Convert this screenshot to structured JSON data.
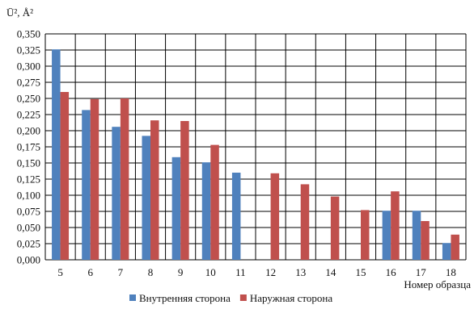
{
  "chart_data": {
    "type": "bar",
    "ylabel": "Ū², Å²",
    "xlabel": "Номер образца",
    "categories": [
      "5",
      "6",
      "7",
      "8",
      "9",
      "10",
      "11",
      "12",
      "13",
      "14",
      "15",
      "16",
      "17",
      "18"
    ],
    "ylim": [
      0,
      0.35
    ],
    "ytick_step": 0.025,
    "ytick_labels": [
      "0,000",
      "0,025",
      "0,050",
      "0,075",
      "0,100",
      "0,125",
      "0,150",
      "0,175",
      "0,200",
      "0,225",
      "0,250",
      "0,275",
      "0,300",
      "0,325",
      "0,350"
    ],
    "grid": true,
    "legend_position": "bottom",
    "series": [
      {
        "name": "Внутренняя сторона",
        "color": "#4f81bd",
        "values": [
          0.326,
          0.232,
          0.206,
          0.192,
          0.159,
          0.151,
          0.135,
          null,
          null,
          null,
          null,
          0.076,
          0.076,
          0.026
        ]
      },
      {
        "name": "Наружная сторона",
        "color": "#c0504d",
        "values": [
          0.26,
          0.249,
          0.25,
          0.216,
          0.215,
          0.178,
          null,
          0.134,
          0.117,
          0.098,
          0.077,
          0.106,
          0.06,
          0.039
        ]
      }
    ]
  }
}
